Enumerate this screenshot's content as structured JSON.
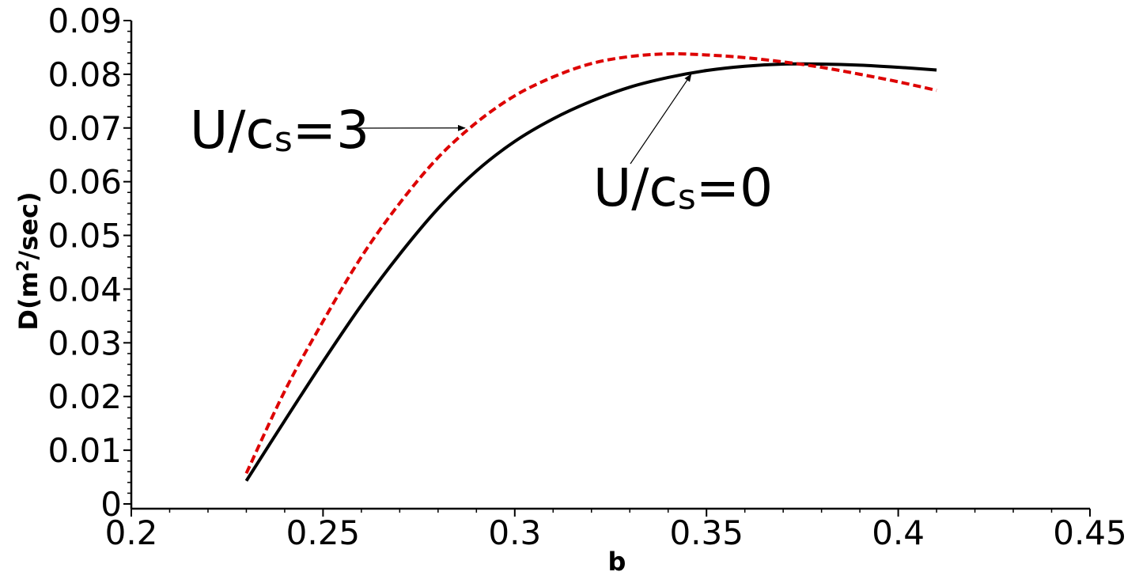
{
  "chart_data": {
    "type": "line",
    "title": "",
    "xlabel": "b",
    "ylabel_parts": {
      "main": "D(m",
      "sup": "2",
      "tail": "/sec)"
    },
    "xlim": [
      0.2,
      0.45
    ],
    "ylim": [
      0,
      0.09
    ],
    "xticks": [
      "0.2",
      "0.25",
      "0.3",
      "0.35",
      "0.4",
      "0.45"
    ],
    "yticks": [
      "0",
      "0.01",
      "0.02",
      "0.03",
      "0.04",
      "0.05",
      "0.06",
      "0.07",
      "0.08",
      "0.09"
    ],
    "grid": false,
    "series": [
      {
        "key": "u0",
        "color": "#000000",
        "dash": "solid",
        "x": [
          0.23,
          0.24,
          0.25,
          0.26,
          0.27,
          0.28,
          0.29,
          0.3,
          0.31,
          0.32,
          0.33,
          0.34,
          0.35,
          0.36,
          0.37,
          0.38,
          0.39,
          0.4,
          0.41
        ],
        "y": [
          0.0043,
          0.0155,
          0.0265,
          0.037,
          0.0465,
          0.055,
          0.062,
          0.0675,
          0.0717,
          0.075,
          0.0776,
          0.0794,
          0.0807,
          0.0815,
          0.0819,
          0.0819,
          0.0817,
          0.0813,
          0.0808
        ]
      },
      {
        "key": "u3",
        "color": "#dd0000",
        "dash": "dashed",
        "x": [
          0.23,
          0.24,
          0.25,
          0.26,
          0.27,
          0.28,
          0.29,
          0.3,
          0.31,
          0.32,
          0.33,
          0.34,
          0.35,
          0.36,
          0.37,
          0.38,
          0.39,
          0.4,
          0.41
        ],
        "y": [
          0.0057,
          0.021,
          0.034,
          0.046,
          0.056,
          0.0645,
          0.071,
          0.076,
          0.0795,
          0.082,
          0.0833,
          0.0838,
          0.0836,
          0.0831,
          0.0823,
          0.0813,
          0.08,
          0.0786,
          0.077
        ]
      }
    ],
    "annotations": [
      {
        "prefix": "U/c",
        "sub": "s",
        "suffix": "=3",
        "points_to_x": 0.287,
        "points_to_y": 0.07
      },
      {
        "prefix": "U/c",
        "sub": "s",
        "suffix": "=0",
        "points_to_x": 0.346,
        "points_to_y": 0.08
      }
    ]
  }
}
